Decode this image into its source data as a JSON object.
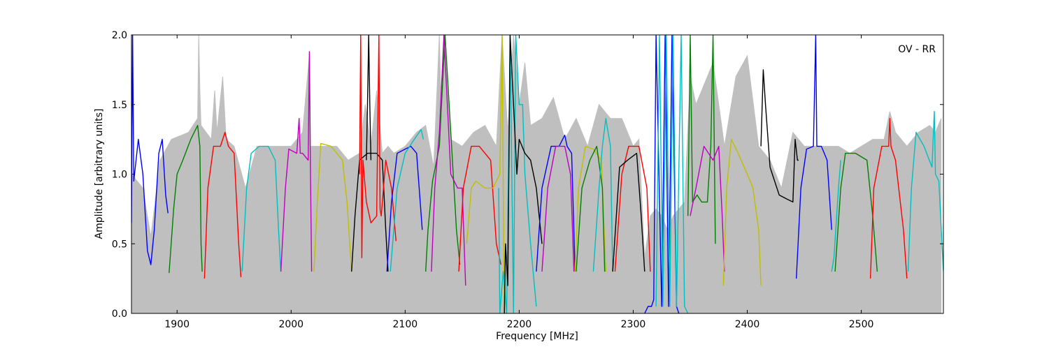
{
  "chart_data": {
    "type": "line",
    "title": "",
    "annotation": "OV - RR",
    "xlabel": "Frequency [MHz]",
    "ylabel": "Amplitude [arbitrary units]",
    "xlim": [
      1860,
      2572
    ],
    "ylim": [
      0.0,
      2.0
    ],
    "xticks": [
      1900,
      2000,
      2100,
      2200,
      2300,
      2400,
      2500
    ],
    "yticks": [
      0.0,
      0.5,
      1.0,
      1.5,
      2.0
    ],
    "xtick_labels": [
      "1900",
      "2000",
      "2100",
      "2200",
      "2300",
      "2400",
      "2500"
    ],
    "ytick_labels": [
      "0.0",
      "0.5",
      "1.0",
      "1.5",
      "2.0"
    ],
    "grid": false,
    "reference_color": "#bfbfbf",
    "reference": {
      "x": [
        1860,
        1870,
        1877,
        1885,
        1895,
        1910,
        1918,
        1919,
        1920,
        1921,
        1930,
        1933,
        1935,
        1940,
        1943,
        1950,
        1960,
        1970,
        1980,
        1990,
        2000,
        2010,
        2016,
        2017,
        2020,
        2030,
        2040,
        2050,
        2060,
        2065,
        2070,
        2075,
        2080,
        2085,
        2090,
        2100,
        2110,
        2118,
        2125,
        2130,
        2132,
        2134,
        2140,
        2150,
        2160,
        2170,
        2180,
        2185,
        2190,
        2195,
        2200,
        2205,
        2210,
        2220,
        2230,
        2240,
        2250,
        2260,
        2270,
        2280,
        2290,
        2300,
        2305,
        2310,
        2315,
        2320,
        2325,
        2330,
        2335,
        2340,
        2345,
        2350,
        2355,
        2360,
        2370,
        2380,
        2390,
        2400,
        2410,
        2420,
        2430,
        2440,
        2450,
        2460,
        2470,
        2480,
        2490,
        2500,
        2510,
        2520,
        2525,
        2530,
        2540,
        2550,
        2560,
        2565,
        2570
      ],
      "y": [
        1.0,
        0.9,
        0.55,
        1.1,
        1.25,
        1.3,
        1.4,
        2.0,
        1.6,
        1.35,
        1.25,
        1.6,
        1.3,
        1.7,
        1.25,
        1.2,
        0.9,
        1.2,
        1.2,
        1.2,
        1.2,
        1.3,
        1.85,
        1.2,
        1.2,
        1.2,
        1.2,
        1.1,
        1.15,
        1.5,
        1.2,
        1.6,
        1.15,
        1.2,
        1.15,
        1.2,
        1.3,
        1.35,
        1.05,
        2.0,
        1.3,
        2.0,
        1.25,
        1.2,
        1.3,
        1.35,
        1.2,
        2.0,
        1.3,
        2.0,
        1.5,
        1.8,
        1.35,
        1.4,
        1.55,
        1.25,
        1.4,
        1.2,
        1.5,
        1.4,
        1.4,
        1.2,
        1.25,
        0.4,
        0.7,
        0.75,
        0.7,
        0.6,
        0.7,
        0.75,
        0.8,
        1.7,
        1.5,
        1.6,
        1.8,
        1.2,
        1.7,
        1.85,
        1.2,
        1.1,
        0.9,
        1.3,
        1.2,
        1.2,
        1.2,
        1.2,
        1.15,
        1.2,
        1.25,
        1.25,
        1.45,
        1.3,
        1.2,
        1.3,
        1.35,
        1.3,
        1.4
      ]
    },
    "series": [
      {
        "color": "#0000ff",
        "x": [
          1860,
          1861,
          1862,
          1866,
          1870,
          1874,
          1877,
          1880,
          1884,
          1887,
          1890,
          1892
        ],
        "y": [
          0.65,
          2.0,
          0.95,
          1.25,
          1.0,
          0.45,
          0.35,
          0.6,
          1.15,
          1.25,
          0.85,
          0.72
        ]
      },
      {
        "color": "#008000",
        "x": [
          1893,
          1897,
          1900,
          1905,
          1912,
          1918,
          1920,
          1921,
          1922
        ],
        "y": [
          0.29,
          0.75,
          1.0,
          1.1,
          1.25,
          1.35,
          1.2,
          0.5,
          0.3
        ]
      },
      {
        "color": "#ff0000",
        "x": [
          1924,
          1927,
          1932,
          1938,
          1942,
          1945,
          1950,
          1954,
          1956
        ],
        "y": [
          0.25,
          0.9,
          1.2,
          1.2,
          1.3,
          1.2,
          1.15,
          0.5,
          0.26
        ]
      },
      {
        "color": "#00bfbf",
        "x": [
          1957,
          1961,
          1965,
          1972,
          1980,
          1986,
          1989,
          1991
        ],
        "y": [
          0.3,
          0.9,
          1.15,
          1.2,
          1.2,
          1.1,
          0.6,
          0.3
        ]
      },
      {
        "color": "#bf00bf",
        "x": [
          1991,
          1995,
          1998,
          2005,
          2007,
          2008,
          2010,
          2015,
          2016,
          2017,
          2018
        ],
        "y": [
          0.3,
          0.9,
          1.18,
          1.15,
          1.4,
          1.15,
          1.15,
          1.1,
          1.88,
          1.0,
          0.3
        ]
      },
      {
        "color": "#bfbf00",
        "x": [
          2020,
          2023,
          2026,
          2035,
          2045,
          2049,
          2053
        ],
        "y": [
          0.3,
          0.8,
          1.22,
          1.2,
          1.1,
          0.8,
          0.3
        ]
      },
      {
        "color": "#000000",
        "x": [
          2053,
          2056,
          2060,
          2067,
          2075,
          2080,
          2083,
          2085
        ],
        "y": [
          0.3,
          0.7,
          1.1,
          1.15,
          1.15,
          1.1,
          0.6,
          0.3
        ]
      },
      {
        "color": "#ff0000",
        "x": [
          2060,
          2061,
          2062,
          2063,
          2066,
          2070,
          2075,
          2077,
          2078,
          2079,
          2083,
          2088,
          2092
        ],
        "y": [
          1.0,
          2.0,
          0.4,
          1.1,
          0.8,
          0.65,
          0.7,
          2.0,
          0.75,
          0.7,
          1.1,
          0.9,
          0.52
        ]
      },
      {
        "color": "#000000",
        "x": [
          2066,
          2067,
          2068,
          2069,
          2070
        ],
        "y": [
          1.1,
          1.5,
          2.0,
          1.5,
          1.1
        ]
      },
      {
        "color": "#0000ff",
        "x": [
          2084,
          2088,
          2093,
          2100,
          2105,
          2110,
          2115
        ],
        "y": [
          0.3,
          0.8,
          1.15,
          1.18,
          1.2,
          1.15,
          0.6
        ]
      },
      {
        "color": "#00bfbf",
        "x": [
          2087,
          2093,
          2100,
          2108,
          2114,
          2116
        ],
        "y": [
          0.3,
          0.9,
          1.15,
          1.25,
          1.32,
          1.25
        ]
      },
      {
        "color": "#008000",
        "x": [
          2118,
          2120,
          2124,
          2130,
          2135,
          2140,
          2145,
          2148
        ],
        "y": [
          0.3,
          0.6,
          0.95,
          1.2,
          2.0,
          1.3,
          0.6,
          0.35
        ]
      },
      {
        "color": "#bf00bf",
        "x": [
          2123,
          2126,
          2130,
          2134,
          2140,
          2146,
          2150,
          2153
        ],
        "y": [
          0.3,
          0.9,
          1.3,
          2.0,
          1.0,
          0.9,
          0.9,
          0.2
        ]
      },
      {
        "color": "#ff0000",
        "x": [
          2147,
          2151,
          2158,
          2165,
          2175,
          2180,
          2184
        ],
        "y": [
          0.3,
          0.9,
          1.2,
          1.2,
          1.1,
          0.5,
          0.35
        ]
      },
      {
        "color": "#bfbf00",
        "x": [
          2154,
          2158,
          2162,
          2170,
          2177,
          2183,
          2185,
          2186,
          2187
        ],
        "y": [
          0.5,
          0.9,
          0.95,
          0.9,
          0.9,
          1.0,
          2.0,
          0.9,
          0.0
        ]
      },
      {
        "color": "#00bfbf",
        "x": [
          2182,
          2183,
          2186,
          2189,
          2192,
          2195,
          2197,
          2200,
          2203,
          2205,
          2210,
          2215
        ],
        "y": [
          0.9,
          0.0,
          0.3,
          0.0,
          2.0,
          0.0,
          2.0,
          1.5,
          1.5,
          1.0,
          0.5,
          0.05
        ]
      },
      {
        "color": "#000000",
        "x": [
          2187,
          2188,
          2190,
          2192,
          2195,
          2198,
          2200,
          2205,
          2210,
          2215,
          2220
        ],
        "y": [
          0.0,
          0.5,
          0.2,
          2.0,
          1.5,
          1.0,
          1.25,
          1.15,
          1.1,
          0.9,
          0.5
        ]
      },
      {
        "color": "#0000ff",
        "x": [
          2215,
          2220,
          2228,
          2235,
          2240,
          2242,
          2246,
          2249
        ],
        "y": [
          0.3,
          0.9,
          1.2,
          1.2,
          1.28,
          1.2,
          1.15,
          0.3
        ]
      },
      {
        "color": "#bf00bf",
        "x": [
          2220,
          2225,
          2232,
          2240,
          2245,
          2248
        ],
        "y": [
          0.3,
          0.9,
          1.2,
          1.2,
          1.0,
          0.3
        ]
      },
      {
        "color": "#bfbf00",
        "x": [
          2249,
          2252,
          2258,
          2265,
          2272,
          2276
        ],
        "y": [
          0.3,
          0.9,
          1.2,
          1.18,
          1.1,
          0.3
        ]
      },
      {
        "color": "#008000",
        "x": [
          2250,
          2255,
          2262,
          2268,
          2273,
          2275
        ],
        "y": [
          0.3,
          0.9,
          1.1,
          1.2,
          0.9,
          0.3
        ]
      },
      {
        "color": "#00bfbf",
        "x": [
          2265,
          2270,
          2273,
          2276,
          2280,
          2282
        ],
        "y": [
          0.3,
          0.9,
          1.2,
          1.4,
          1.2,
          0.3
        ]
      },
      {
        "color": "#ff0000",
        "x": [
          2284,
          2290,
          2296,
          2305,
          2312,
          2315
        ],
        "y": [
          0.3,
          1.0,
          1.2,
          1.2,
          0.9,
          0.3
        ]
      },
      {
        "color": "#000000",
        "x": [
          2282,
          2288,
          2295,
          2303,
          2307,
          2310
        ],
        "y": [
          0.3,
          1.05,
          1.1,
          1.15,
          0.7,
          0.3
        ]
      },
      {
        "color": "#0000ff",
        "x": [
          2310,
          2313,
          2316,
          2318,
          2320,
          2325,
          2328,
          2331,
          2334,
          2338,
          2340
        ],
        "y": [
          0.0,
          0.05,
          0.05,
          0.1,
          2.0,
          0.05,
          2.0,
          0.05,
          2.0,
          0.05,
          0.0
        ]
      },
      {
        "color": "#00bfbf",
        "x": [
          2320,
          2323,
          2326,
          2329,
          2332,
          2335,
          2338,
          2342,
          2345,
          2348
        ],
        "y": [
          0.05,
          2.0,
          0.05,
          2.0,
          0.05,
          2.0,
          0.05,
          2.0,
          0.05,
          0.0
        ]
      },
      {
        "color": "#008000",
        "x": [
          2348,
          2350,
          2352,
          2356,
          2360,
          2365,
          2368,
          2370,
          2372
        ],
        "y": [
          0.7,
          2.0,
          0.8,
          0.85,
          0.8,
          0.8,
          1.2,
          2.0,
          0.5
        ]
      },
      {
        "color": "#bf00bf",
        "x": [
          2350,
          2355,
          2362,
          2370,
          2375,
          2378,
          2380
        ],
        "y": [
          0.7,
          0.9,
          1.2,
          1.1,
          1.2,
          0.7,
          0.3
        ]
      },
      {
        "color": "#bfbf00",
        "x": [
          2379,
          2382,
          2386,
          2392,
          2400,
          2405,
          2410,
          2412
        ],
        "y": [
          0.2,
          0.9,
          1.25,
          1.15,
          1.0,
          0.9,
          0.6,
          0.2
        ]
      },
      {
        "color": "#000000",
        "x": [
          2412,
          2414,
          2416,
          2420,
          2428,
          2435,
          2440,
          2442,
          2444,
          2445
        ],
        "y": [
          1.2,
          1.75,
          1.5,
          1.05,
          0.85,
          0.82,
          0.8,
          1.25,
          1.1,
          1.1
        ]
      },
      {
        "color": "#0000ff",
        "x": [
          2443,
          2447,
          2452,
          2458,
          2460,
          2461,
          2465,
          2470,
          2474
        ],
        "y": [
          0.25,
          0.9,
          1.18,
          1.2,
          2.0,
          1.2,
          1.2,
          1.1,
          0.6
        ]
      },
      {
        "color": "#00bfbf",
        "x": [
          2474,
          2476,
          2480,
          2482
        ],
        "y": [
          0.3,
          0.4,
          0.9,
          1.1
        ]
      },
      {
        "color": "#008000",
        "x": [
          2477,
          2482,
          2486,
          2495,
          2505,
          2510,
          2514
        ],
        "y": [
          0.3,
          0.9,
          1.15,
          1.15,
          1.1,
          0.7,
          0.3
        ]
      },
      {
        "color": "#ff0000",
        "x": [
          2508,
          2511,
          2518,
          2524,
          2525,
          2526,
          2530,
          2537,
          2540
        ],
        "y": [
          0.25,
          0.9,
          1.2,
          1.2,
          1.4,
          1.2,
          1.1,
          0.6,
          0.25
        ]
      },
      {
        "color": "#00bfbf",
        "x": [
          2541,
          2544,
          2548,
          2555,
          2562,
          2564,
          2565,
          2568,
          2572
        ],
        "y": [
          0.3,
          0.9,
          1.3,
          1.2,
          1.05,
          1.45,
          1.0,
          0.95,
          0.3
        ]
      }
    ]
  }
}
